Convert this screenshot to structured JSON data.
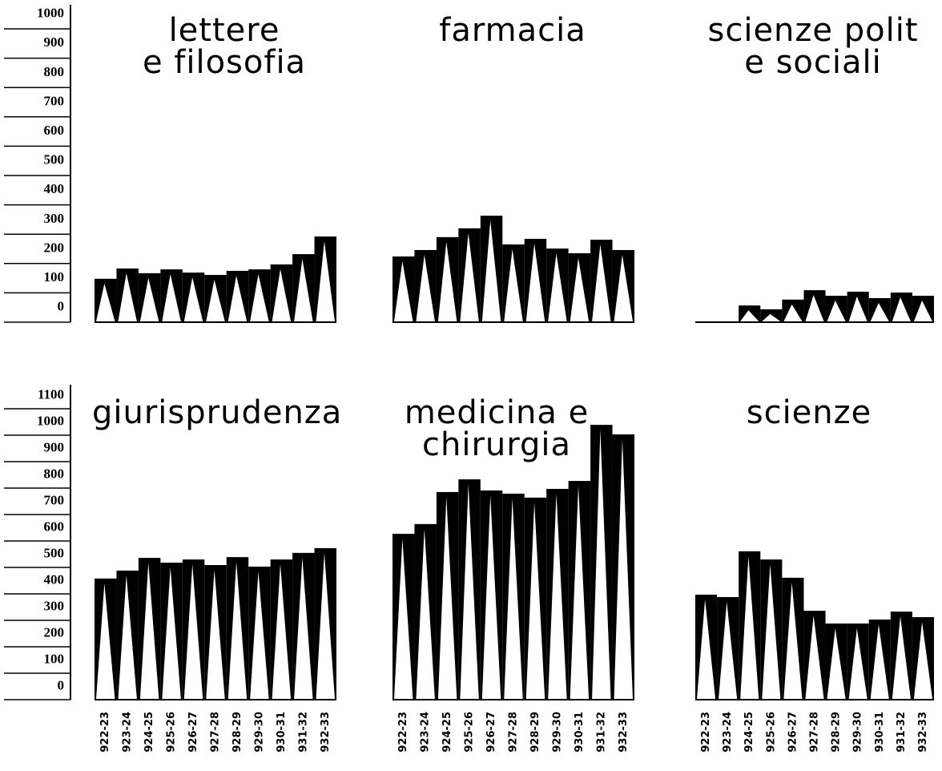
{
  "chart_data": [
    {
      "type": "bar",
      "title": "lettere\ne filosofia",
      "values": [
        148,
        183,
        167,
        180,
        169,
        161,
        175,
        180,
        197,
        232,
        292
      ],
      "color": "#000000",
      "ylim": [
        0,
        1000
      ],
      "yticks": [
        0,
        100,
        200,
        300,
        400,
        500,
        600,
        700,
        800,
        900,
        1000
      ]
    },
    {
      "type": "bar",
      "title": "farmacia",
      "values": [
        224,
        246,
        290,
        320,
        363,
        265,
        284,
        251,
        235,
        281,
        246
      ],
      "color": "#000000",
      "ylim": [
        0,
        1000
      ]
    },
    {
      "type": "bar",
      "title": "scienze polit\ne sociali",
      "values": [
        null,
        null,
        57,
        44,
        77,
        109,
        90,
        104,
        82,
        101,
        90
      ],
      "color": "#000000",
      "ylim": [
        0,
        1000
      ]
    },
    {
      "type": "bar",
      "title": "giurisprudenza",
      "categories": [
        "922-23",
        "923-24",
        "924-25",
        "925-26",
        "926-27",
        "927-28",
        "928-29",
        "929-30",
        "930-31",
        "931-32",
        "932-33"
      ],
      "values": [
        458,
        488,
        536,
        518,
        530,
        509,
        539,
        503,
        530,
        555,
        573
      ],
      "color": "#000000",
      "ylim": [
        0,
        1100
      ],
      "yticks": [
        0,
        100,
        200,
        300,
        400,
        500,
        600,
        700,
        800,
        900,
        1000,
        1100
      ]
    },
    {
      "type": "bar",
      "title": "medicina e\nchirurgia",
      "categories": [
        "922-23",
        "923-24",
        "924-25",
        "925-26",
        "926-27",
        "927-28",
        "928-29",
        "929-30",
        "930-31",
        "931-32",
        "932-33"
      ],
      "values": [
        627,
        664,
        785,
        833,
        791,
        779,
        764,
        797,
        827,
        1039,
        1003
      ],
      "color": "#000000",
      "ylim": [
        0,
        1100
      ]
    },
    {
      "type": "bar",
      "title": "scienze",
      "categories": [
        "922-23",
        "923-24",
        "924-25",
        "925-26",
        "926-27",
        "927-28",
        "928-29",
        "929-30",
        "930-31",
        "931-32",
        "932-33"
      ],
      "values": [
        397,
        388,
        561,
        530,
        461,
        336,
        288,
        288,
        303,
        333,
        312
      ],
      "color": "#000000",
      "ylim": [
        0,
        1100
      ]
    }
  ]
}
